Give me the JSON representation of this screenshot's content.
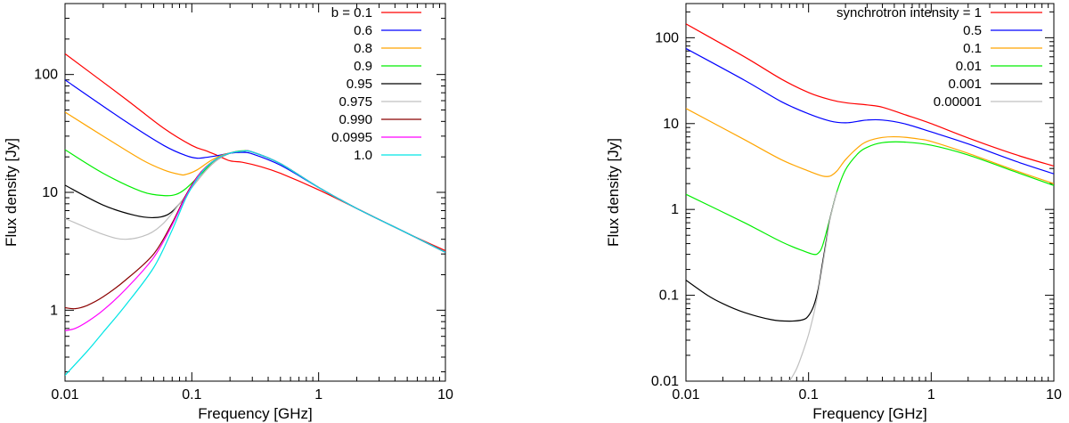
{
  "chart_data": [
    {
      "type": "line",
      "xscale": "log",
      "yscale": "log",
      "xlabel": "Frequency [GHz]",
      "ylabel": "Flux density [Jy]",
      "xlim": [
        0.01,
        10
      ],
      "ylim": [
        0.25,
        400
      ],
      "xticks": [
        0.01,
        0.1,
        1,
        10
      ],
      "xtick_labels": [
        "0.01",
        "0.1",
        "1",
        "10"
      ],
      "yticks": [
        1,
        10,
        100
      ],
      "ytick_labels": [
        "1",
        "10",
        "100"
      ],
      "legend_position": "top-right",
      "series": [
        {
          "name": "b = 0.1",
          "color": "#ff0000",
          "x": [
            0.01,
            0.03,
            0.06,
            0.1,
            0.13,
            0.16,
            0.2,
            0.25,
            0.35,
            0.5,
            1,
            2,
            5,
            10
          ],
          "y": [
            150,
            62,
            35,
            25,
            22.5,
            20.5,
            18.5,
            18,
            16.5,
            14.5,
            10.5,
            7.3,
            4.5,
            3.2
          ]
        },
        {
          "name": "0.6",
          "color": "#0000ff",
          "x": [
            0.01,
            0.03,
            0.06,
            0.09,
            0.11,
            0.13,
            0.16,
            0.2,
            0.25,
            0.3,
            0.5,
            1,
            2,
            5,
            10
          ],
          "y": [
            90,
            40,
            25,
            20.5,
            19.5,
            19.8,
            20.5,
            21.5,
            21.8,
            21.2,
            17,
            11,
            7.3,
            4.5,
            3.1
          ]
        },
        {
          "name": "0.8",
          "color": "#ffa500",
          "x": [
            0.01,
            0.02,
            0.04,
            0.06,
            0.08,
            0.09,
            0.11,
            0.14,
            0.18,
            0.25,
            0.3,
            0.5,
            1,
            2,
            5,
            10
          ],
          "y": [
            48,
            30,
            19,
            15.5,
            14.2,
            14.2,
            15.5,
            18.5,
            21,
            22.3,
            22,
            17.5,
            11,
            7.3,
            4.5,
            3.1
          ]
        },
        {
          "name": "0.9",
          "color": "#00ee00",
          "x": [
            0.01,
            0.02,
            0.04,
            0.06,
            0.075,
            0.09,
            0.12,
            0.15,
            0.2,
            0.25,
            0.3,
            0.5,
            1,
            2,
            5,
            10
          ],
          "y": [
            23,
            14.5,
            10.2,
            9.4,
            9.6,
            10.8,
            14.5,
            18.5,
            21.5,
            22.5,
            22,
            17.5,
            11,
            7.3,
            4.5,
            3.1
          ]
        },
        {
          "name": "0.95",
          "color": "#000000",
          "x": [
            0.01,
            0.02,
            0.035,
            0.05,
            0.065,
            0.08,
            0.1,
            0.13,
            0.16,
            0.2,
            0.25,
            0.3,
            0.5,
            1,
            2,
            5,
            10
          ],
          "y": [
            11.5,
            7.8,
            6.4,
            6.1,
            6.5,
            8,
            11,
            15.5,
            19,
            21.5,
            22.3,
            22,
            17.5,
            11,
            7.3,
            4.5,
            3.1
          ]
        },
        {
          "name": "0.975",
          "color": "#c0c0c0",
          "x": [
            0.01,
            0.02,
            0.03,
            0.045,
            0.06,
            0.08,
            0.1,
            0.13,
            0.16,
            0.2,
            0.25,
            0.3,
            0.5,
            1,
            2,
            5,
            10
          ],
          "y": [
            6,
            4.4,
            4,
            4.4,
            5.5,
            8,
            11,
            15.5,
            19,
            21.5,
            22.3,
            22,
            17.5,
            11,
            7.3,
            4.5,
            3.1
          ]
        },
        {
          "name": "0.990",
          "color": "#8b0000",
          "x": [
            0.01,
            0.012,
            0.015,
            0.02,
            0.03,
            0.05,
            0.07,
            0.09,
            0.11,
            0.13,
            0.16,
            0.2,
            0.25,
            0.3,
            0.5,
            1,
            2,
            5,
            10
          ],
          "y": [
            1.05,
            1.03,
            1.1,
            1.3,
            1.8,
            3,
            5.5,
            9.5,
            13.5,
            16.5,
            19.5,
            21.5,
            22.3,
            22,
            17.5,
            11,
            7.3,
            4.5,
            3.1
          ]
        },
        {
          "name": "0.0995",
          "color": "#ff00ff",
          "x": [
            0.01,
            0.012,
            0.015,
            0.02,
            0.03,
            0.05,
            0.07,
            0.09,
            0.11,
            0.13,
            0.16,
            0.2,
            0.25,
            0.3,
            0.5,
            1,
            2,
            5,
            10
          ],
          "y": [
            0.67,
            0.7,
            0.8,
            1.0,
            1.5,
            2.8,
            5.3,
            9.3,
            13.3,
            16.4,
            19.5,
            21.5,
            22.3,
            22,
            17.5,
            11,
            7.3,
            4.5,
            3.1
          ]
        },
        {
          "name": "1.0",
          "color": "#00e5e5",
          "x": [
            0.01,
            0.015,
            0.02,
            0.03,
            0.05,
            0.07,
            0.09,
            0.11,
            0.13,
            0.16,
            0.2,
            0.25,
            0.3,
            0.5,
            1,
            2,
            5,
            10
          ],
          "y": [
            0.28,
            0.45,
            0.65,
            1.1,
            2.3,
            4.8,
            9,
            13,
            16.3,
            19.5,
            21.5,
            22.3,
            22,
            17.5,
            11,
            7.3,
            4.5,
            3.1
          ]
        }
      ]
    },
    {
      "type": "line",
      "xscale": "log",
      "yscale": "log",
      "xlabel": "Frequency [GHz]",
      "ylabel": "Flux density [Jy]",
      "xlim": [
        0.01,
        10
      ],
      "ylim": [
        0.01,
        250
      ],
      "xticks": [
        0.01,
        0.1,
        1,
        10
      ],
      "xtick_labels": [
        "0.01",
        "0.1",
        "1",
        "10"
      ],
      "yticks": [
        0.01,
        0.1,
        1,
        10,
        100
      ],
      "ytick_labels": [
        "0.01",
        "0.1",
        "1",
        "10",
        "100"
      ],
      "legend_position": "top-right",
      "series": [
        {
          "name": "synchrotron intensity = 1",
          "color": "#ff0000",
          "x": [
            0.01,
            0.03,
            0.06,
            0.1,
            0.15,
            0.2,
            0.3,
            0.4,
            0.6,
            1,
            2,
            5,
            10
          ],
          "y": [
            145,
            60,
            33,
            23,
            19,
            17.5,
            16.5,
            15.5,
            12.8,
            10,
            6.8,
            4.3,
            3.2
          ]
        },
        {
          "name": "0.5",
          "color": "#0000ff",
          "x": [
            0.01,
            0.03,
            0.06,
            0.1,
            0.15,
            0.2,
            0.25,
            0.3,
            0.4,
            0.6,
            1,
            2,
            5,
            10
          ],
          "y": [
            75,
            32,
            18,
            13,
            10.7,
            10.2,
            10.6,
            11,
            11,
            10,
            8,
            5.8,
            3.6,
            2.6
          ]
        },
        {
          "name": "0.1",
          "color": "#ffa500",
          "x": [
            0.01,
            0.03,
            0.06,
            0.1,
            0.13,
            0.15,
            0.17,
            0.2,
            0.25,
            0.3,
            0.4,
            0.55,
            0.8,
            1,
            2,
            5,
            10
          ],
          "y": [
            15,
            6.5,
            3.8,
            2.8,
            2.45,
            2.45,
            2.8,
            3.8,
            5.2,
            6.2,
            6.9,
            7,
            6.6,
            6.2,
            4.5,
            2.8,
            2.0
          ]
        },
        {
          "name": "0.01",
          "color": "#00ee00",
          "x": [
            0.01,
            0.03,
            0.06,
            0.09,
            0.11,
            0.12,
            0.13,
            0.15,
            0.17,
            0.2,
            0.25,
            0.3,
            0.4,
            0.6,
            1,
            2,
            5,
            10
          ],
          "y": [
            1.5,
            0.7,
            0.42,
            0.33,
            0.3,
            0.31,
            0.38,
            0.8,
            1.6,
            2.9,
            4.4,
            5.3,
            6,
            6.1,
            5.6,
            4.3,
            2.7,
            1.9
          ]
        },
        {
          "name": "0.001",
          "color": "#000000",
          "x": [
            0.01,
            0.015,
            0.02,
            0.03,
            0.05,
            0.07,
            0.09,
            0.1,
            0.11,
            0.12,
            0.13,
            0.14,
            0.15,
            0.17
          ],
          "y": [
            0.15,
            0.1,
            0.08,
            0.063,
            0.052,
            0.05,
            0.052,
            0.058,
            0.075,
            0.12,
            0.24,
            0.45,
            0.8,
            1.6
          ]
        },
        {
          "name": "0.00001",
          "color": "#c0c0c0",
          "x": [
            0.07,
            0.08,
            0.09,
            0.1,
            0.11,
            0.12,
            0.13,
            0.14,
            0.15,
            0.17
          ],
          "y": [
            0.01,
            0.014,
            0.022,
            0.035,
            0.06,
            0.11,
            0.22,
            0.42,
            0.78,
            1.6
          ]
        }
      ]
    }
  ]
}
